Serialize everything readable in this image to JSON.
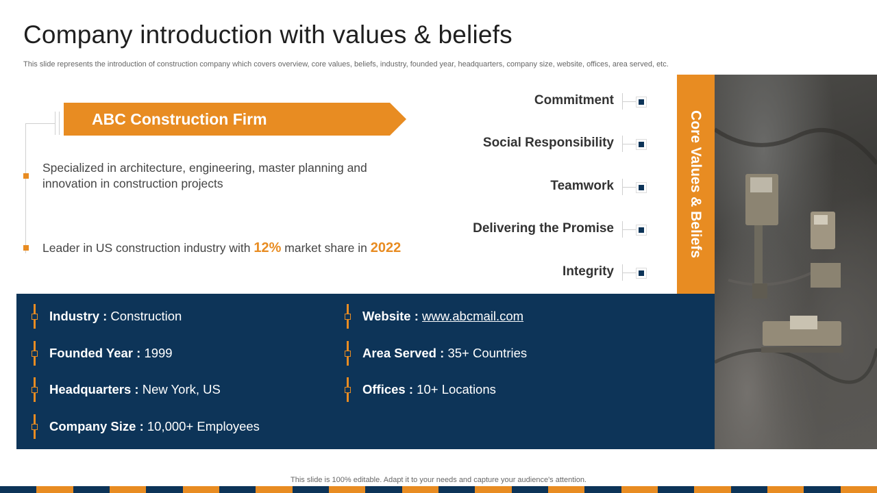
{
  "slide": {
    "title": "Company introduction with values & beliefs",
    "subtitle": "This slide represents the introduction of construction company which covers overview, core values, beliefs, industry, founded year, headquarters, company size, website, offices, area served, etc."
  },
  "company": {
    "name": "ABC Construction Firm",
    "description": "Specialized in architecture, engineering, master planning and innovation in construction projects",
    "leader_prefix": "Leader in US construction industry with",
    "market_share": "12%",
    "leader_middle": "market share in",
    "year": "2022"
  },
  "core_values": {
    "heading": "Core Values & Beliefs",
    "items": [
      "Commitment",
      "Social Responsibility",
      "Teamwork",
      "Delivering the Promise",
      "Integrity"
    ]
  },
  "info": {
    "industry": {
      "label": "Industry :",
      "value": "Construction"
    },
    "founded": {
      "label": "Founded Year :",
      "value": "1999"
    },
    "headquarters": {
      "label": "Headquarters :",
      "value": "New York, US"
    },
    "company_size": {
      "label": "Company Size :",
      "value": "10,000+ Employees"
    },
    "website": {
      "label": "Website :",
      "value": "www.abcmail.com"
    },
    "area_served": {
      "label": "Area Served :",
      "value": "35+ Countries"
    },
    "offices": {
      "label": "Offices :",
      "value": "10+ Locations"
    }
  },
  "footer": {
    "note": "This slide is 100% editable. Adapt it to your needs and capture your audience's attention."
  },
  "colors": {
    "accent": "#e88c22",
    "navy": "#0d3458"
  }
}
